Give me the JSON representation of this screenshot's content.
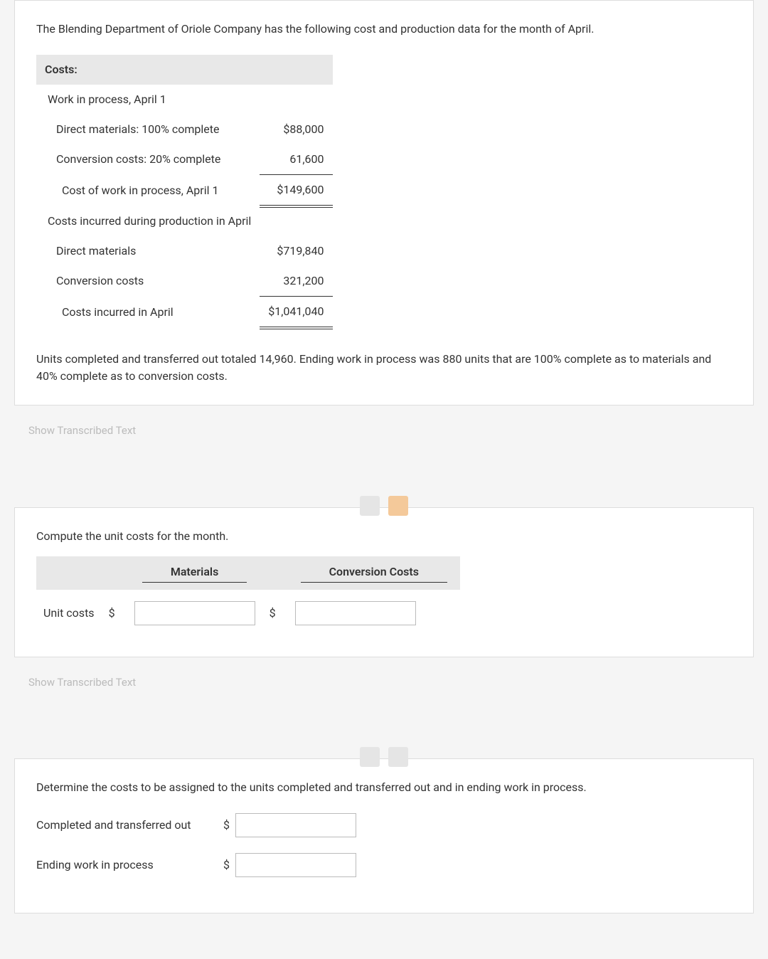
{
  "card1": {
    "intro": "The Blending Department of Oriole Company has the following cost and production data for the month of April.",
    "costs_header": "Costs:",
    "rows": {
      "wip_label": "Work in process, April 1",
      "dm_label": "Direct materials: 100% complete",
      "dm_value": "$88,000",
      "cc_label": "Conversion costs: 20% complete",
      "cc_value": "61,600",
      "cost_wip_label": "Cost of work in process, April 1",
      "cost_wip_value": "$149,600",
      "incurred_label": "Costs incurred during production in April",
      "dm2_label": "Direct materials",
      "dm2_value": "$719,840",
      "cc2_label": "Conversion costs",
      "cc2_value": "321,200",
      "incurred_total_label": "Costs incurred in April",
      "incurred_total_value": "$1,041,040"
    },
    "paragraph2": "Units completed and transferred out totaled 14,960. Ending work in process was 880 units that are 100% complete as to materials and 40% complete as to conversion costs."
  },
  "show_text": "Show Transcribed Text",
  "card2": {
    "prompt": "Compute the unit costs for the month.",
    "headers": {
      "materials": "Materials",
      "conversion": "Conversion Costs"
    },
    "row_label": "Unit costs",
    "dollar": "$"
  },
  "card3": {
    "prompt": "Determine the costs to be assigned to the units completed and transferred out and in ending work in process.",
    "rows": {
      "completed": "Completed and transferred out",
      "ending": "Ending work in process"
    },
    "dollar": "$"
  },
  "colors": {
    "card_border": "#dddddd",
    "header_bg": "#e8e8e8",
    "page_bg": "#f5f5f5"
  }
}
